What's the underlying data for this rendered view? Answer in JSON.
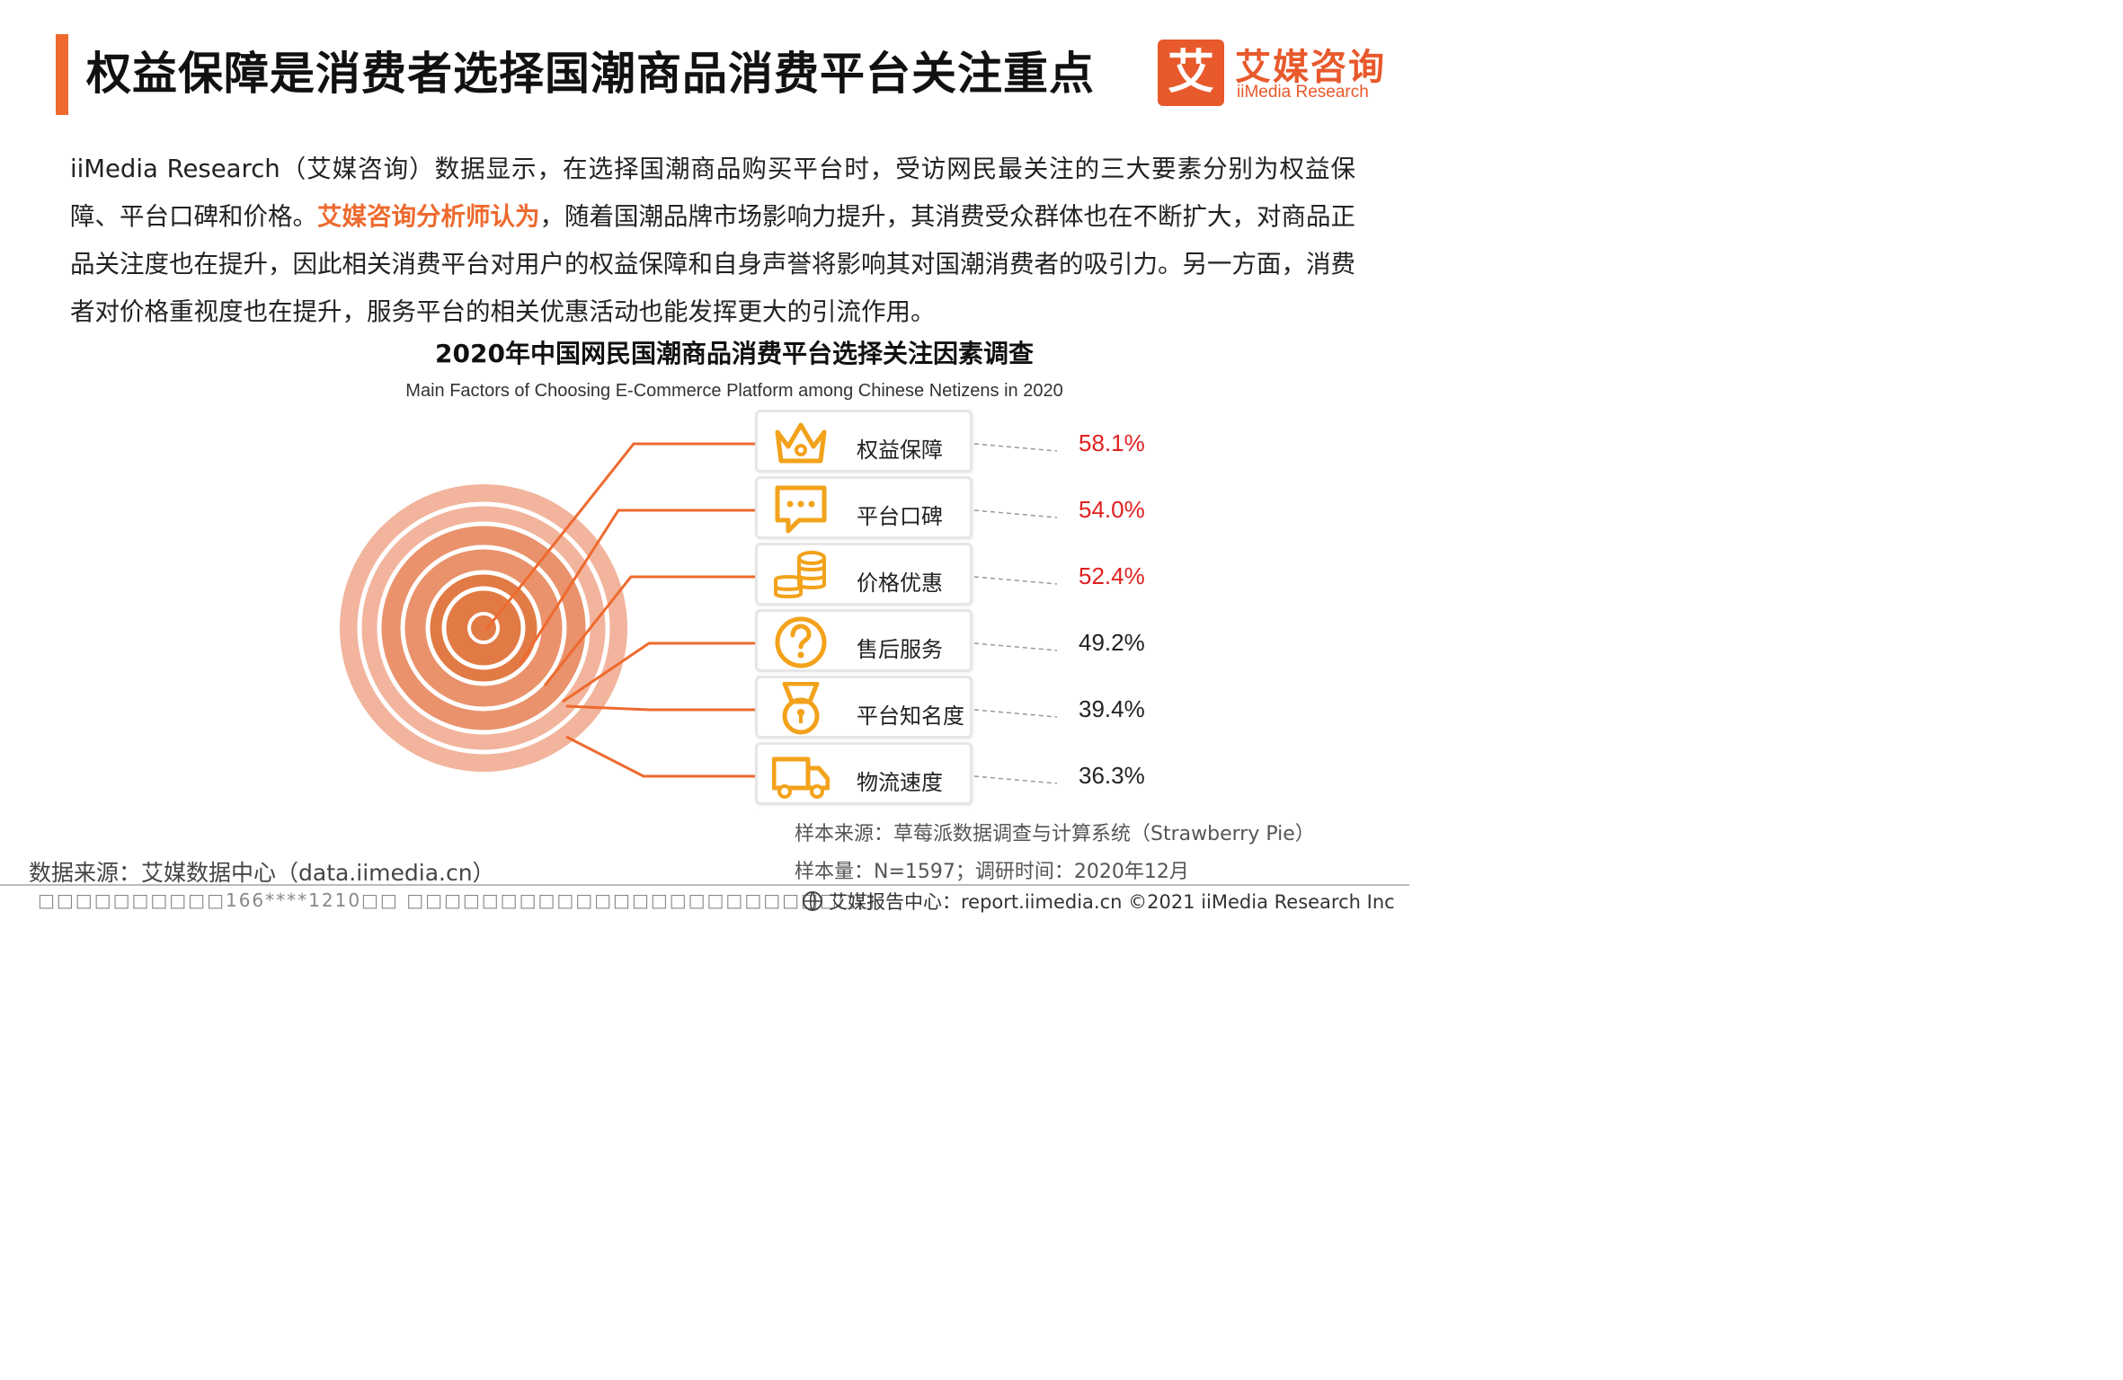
{
  "header": {
    "title": "权益保障是消费者选择国潮商品消费平台关注重点",
    "logo_mark": "艾",
    "logo_cn": "艾媒咨询",
    "logo_en": "iiMedia Research"
  },
  "intro": {
    "part1": "iiMedia Research（艾媒咨询）数据显示，在选择国潮商品购买平台时，受访网民最关注的三大要素分别为权益保障、平台口碑和价格。",
    "highlight": "艾媒咨询分析师认为",
    "part2": "，随着国潮品牌市场影响力提升，其消费受众群体也在不断扩大，对商品正品关注度也在提升，因此相关消费平台对用户的权益保障和自身声誉将影响其对国潮消费者的吸引力。另一方面，消费者对价格重视度也在提升，服务平台的相关优惠活动也能发挥更大的引流作用。"
  },
  "chart_data": {
    "type": "bar",
    "title": "2020年中国网民国潮商品消费平台选择关注因素调查",
    "subtitle": "Main Factors of Choosing E-Commerce Platform among Chinese Netizens in 2020",
    "categories": [
      "权益保障",
      "平台口碑",
      "价格优惠",
      "售后服务",
      "平台知名度",
      "物流速度"
    ],
    "values": [
      58.1,
      54.0,
      52.4,
      49.2,
      39.4,
      36.3
    ],
    "value_labels": [
      "58.1%",
      "54.0%",
      "52.4%",
      "49.2%",
      "39.4%",
      "36.3%"
    ],
    "icons": [
      "crown-icon",
      "chat-bubble-icon",
      "coins-icon",
      "question-icon",
      "medal-icon",
      "truck-icon"
    ],
    "highlight_top": 3,
    "colors": {
      "highlight": "#e02020",
      "normal": "#222222",
      "accent": "#ee6a2e",
      "ring_outer": "#f2b49c",
      "ring_mid": "#e9926c",
      "ring_inner": "#e27a45",
      "icon": "#f3a21b"
    }
  },
  "footer": {
    "sample_source": "样本来源：草莓派数据调查与计算系统（Strawberry Pie）",
    "sample_size": "样本量：N=1597；调研时间：2020年12月",
    "data_source": "数据来源：艾媒数据中心（data.iimedia.cn）",
    "watermark": "□□□□□□□□□□166****1210□□ □□□□□□□□□□□□□□□□□□□□□□□□□",
    "report": "艾媒报告中心：report.iimedia.cn   ©2021  iiMedia Research  Inc"
  }
}
